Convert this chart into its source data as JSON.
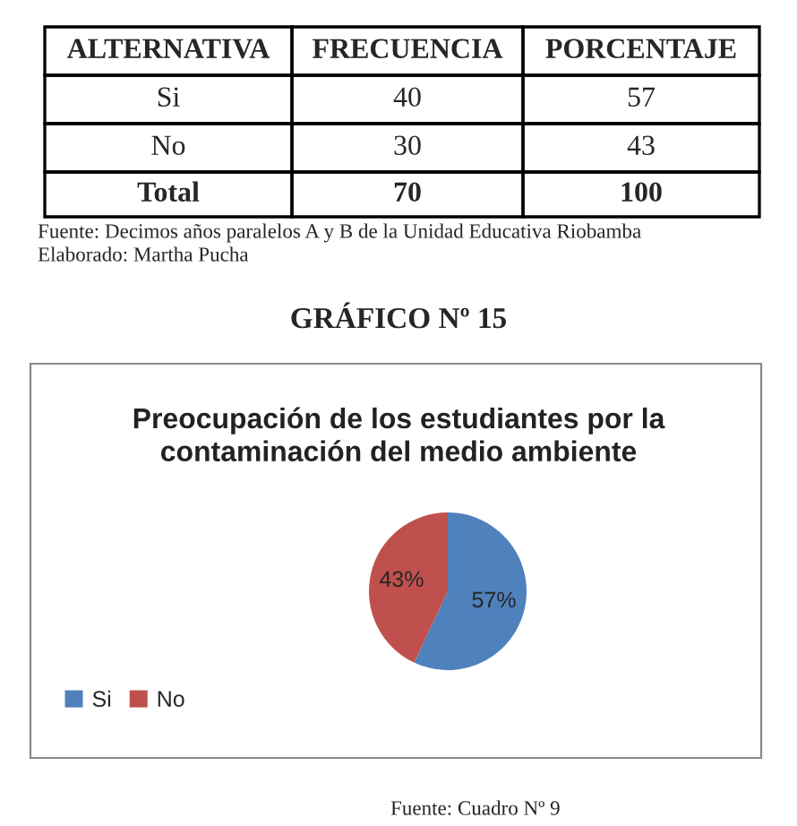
{
  "chart_data": {
    "type": "pie",
    "title": "Preocupación de los estudiantes por la contaminación del medio ambiente",
    "categories": [
      "Si",
      "No"
    ],
    "values": [
      57,
      43
    ],
    "colors": [
      "#4f81bd",
      "#c0504d"
    ],
    "value_labels": [
      "57%",
      "43%"
    ],
    "legend": "bottom left",
    "annotations": [
      "ALTERNATIVA",
      "FRECUENCIA",
      "PORCENTAJE",
      "Si",
      "40",
      "57",
      "No",
      "30",
      "43",
      "Total",
      "70",
      "100",
      "Fuente: Decimos años paralelos A y B de la Unidad Educativa Riobamba",
      "Elaborado: Martha Pucha",
      "GRÁFICO Nº 15",
      "Fuente: Cuadro Nº 9"
    ]
  }
}
